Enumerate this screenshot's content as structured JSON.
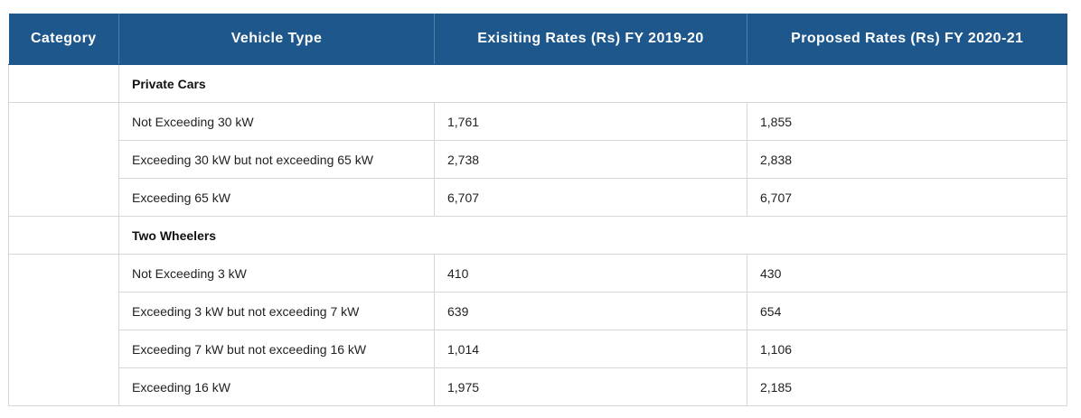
{
  "headers": {
    "category": "Category",
    "vehicle_type": "Vehicle Type",
    "existing": "Exisiting Rates (Rs) FY 2019-20",
    "proposed": "Proposed Rates (Rs) FY 2020-21"
  },
  "groups": [
    {
      "title": "Private Cars",
      "rows": [
        {
          "type": "Not Exceeding 30 kW",
          "existing": "1,761",
          "proposed": "1,855"
        },
        {
          "type": "Exceeding 30 kW but not exceeding 65 kW",
          "existing": "2,738",
          "proposed": "2,838"
        },
        {
          "type": "Exceeding 65 kW",
          "existing": "6,707",
          "proposed": "6,707"
        }
      ]
    },
    {
      "title": "Two Wheelers",
      "rows": [
        {
          "type": "Not Exceeding 3 kW",
          "existing": "410",
          "proposed": "430"
        },
        {
          "type": "Exceeding 3 kW but not exceeding 7 kW",
          "existing": "639",
          "proposed": "654"
        },
        {
          "type": "Exceeding 7 kW but not exceeding 16 kW",
          "existing": "1,014",
          "proposed": "1,106"
        },
        {
          "type": "Exceeding 16 kW",
          "existing": "1,975",
          "proposed": "2,185"
        }
      ]
    }
  ],
  "colors": {
    "header_bg": "#1d578b",
    "header_text": "#ffffff",
    "border": "#d6d6d6"
  }
}
